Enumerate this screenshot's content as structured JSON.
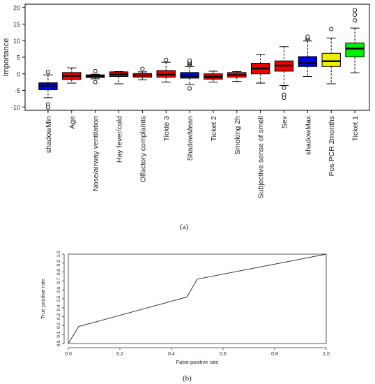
{
  "chart_data": [
    {
      "type": "boxplot",
      "ylabel": "Importance",
      "ylim": [
        -11,
        21
      ],
      "yticks": [
        -10,
        -5,
        0,
        5,
        10,
        15,
        20
      ],
      "categories": [
        "shadowMin",
        "Age",
        "Nose/airway ventilation",
        "Hay fever/cold",
        "Olfactory complaints",
        "Tickte 3",
        "ShadowMean",
        "Ticket 2",
        "Smoking 2h",
        "Subjective sense of smell",
        "Sex",
        "shadowMax",
        "Pos PCR 2months",
        "Ticket 1"
      ],
      "boxes": [
        {
          "min": -7.2,
          "q1": -4.8,
          "median": -3.6,
          "q3": -2.7,
          "max": -0.3,
          "outliers": [
            0.6,
            -9.2,
            -10.1
          ],
          "color": "#0000ee"
        },
        {
          "min": -2.8,
          "q1": -1.7,
          "median": -0.6,
          "q3": 0.4,
          "max": 1.8,
          "outliers": [],
          "color": "#ee0000"
        },
        {
          "min": -1.5,
          "q1": -1.1,
          "median": -0.7,
          "q3": -0.3,
          "max": -0.1,
          "outliers": [
            0.8,
            -2.5
          ],
          "color": "#ee0000"
        },
        {
          "min": -3.0,
          "q1": -0.8,
          "median": -0.2,
          "q3": 0.6,
          "max": 0.7,
          "outliers": [],
          "color": "#ee0000"
        },
        {
          "min": -1.8,
          "q1": -1.0,
          "median": -0.5,
          "q3": 0.1,
          "max": 0.6,
          "outliers": [
            1.5
          ],
          "color": "#ee0000"
        },
        {
          "min": -2.5,
          "q1": -1.0,
          "median": -0.2,
          "q3": 1.0,
          "max": 3.5,
          "outliers": [
            4.2
          ],
          "color": "#ee0000"
        },
        {
          "min": -3.2,
          "q1": -1.3,
          "median": -0.6,
          "q3": 0.4,
          "max": 2.2,
          "outliers": [
            2.6,
            3.0,
            3.3,
            3.6,
            4.0,
            -4.4
          ],
          "color": "#0000ee"
        },
        {
          "min": -2.5,
          "q1": -1.6,
          "median": -0.9,
          "q3": 0.0,
          "max": 0.8,
          "outliers": [],
          "color": "#ee0000"
        },
        {
          "min": -2.3,
          "q1": -1.0,
          "median": -0.4,
          "q3": 0.4,
          "max": 0.7,
          "outliers": [],
          "color": "#ee0000"
        },
        {
          "min": -2.8,
          "q1": 0.0,
          "median": 1.6,
          "q3": 3.2,
          "max": 5.8,
          "outliers": [],
          "color": "#ee0000"
        },
        {
          "min": -3.5,
          "q1": 0.8,
          "median": 2.5,
          "q3": 3.9,
          "max": 8.2,
          "outliers": [
            -4.2,
            -6.3,
            -7.2
          ],
          "color": "#ee0000"
        },
        {
          "min": -0.8,
          "q1": 2.2,
          "median": 3.2,
          "q3": 5.2,
          "max": 9.9,
          "outliers": [
            10.4,
            10.8,
            11.2
          ],
          "color": "#0000ee"
        },
        {
          "min": -3.0,
          "q1": 2.2,
          "median": 3.8,
          "q3": 6.2,
          "max": 10.8,
          "outliers": [
            13.5
          ],
          "color": "#eeee00"
        },
        {
          "min": 0.3,
          "q1": 5.1,
          "median": 7.6,
          "q3": 9.3,
          "max": 13.8,
          "outliers": [
            16.1,
            17.8,
            19.2
          ],
          "color": "#00ee00"
        }
      ]
    },
    {
      "type": "line",
      "xlabel": "False positive rate",
      "ylabel": "True positive rate",
      "xlim": [
        0,
        1
      ],
      "ylim": [
        0,
        1
      ],
      "xticks": [
        "0.0",
        "0.2",
        "0.4",
        "0.6",
        "0.8",
        "1.0"
      ],
      "yticks": [
        "0.0",
        "0.1",
        "0.2",
        "0.3",
        "0.4",
        "0.5",
        "0.6",
        "0.7",
        "0.8",
        "0.9",
        "1.0"
      ],
      "x": [
        0.0,
        0.04,
        0.46,
        0.5,
        1.0
      ],
      "y": [
        0.0,
        0.19,
        0.52,
        0.72,
        1.0
      ]
    }
  ],
  "captions": [
    "(a)",
    "(b)"
  ]
}
